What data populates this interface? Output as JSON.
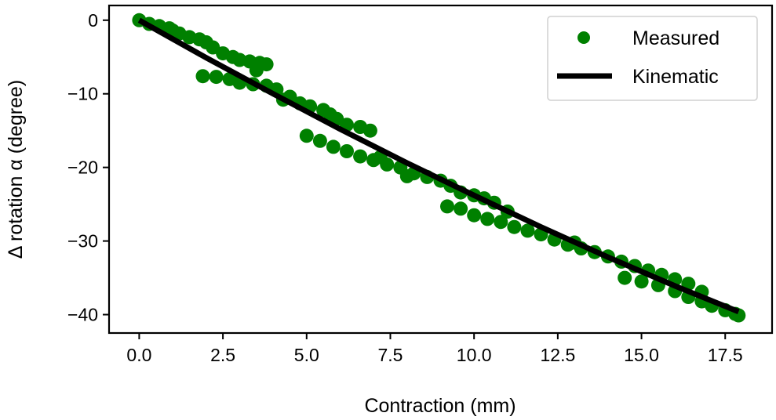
{
  "chart_data": {
    "type": "scatter",
    "title": "",
    "xlabel": "Contraction (mm)",
    "ylabel": "Δ rotation α (degree)",
    "xlim": [
      -0.9,
      18.9
    ],
    "ylim": [
      -42.5,
      2.0
    ],
    "xticks": [
      0.0,
      2.5,
      5.0,
      7.5,
      10.0,
      12.5,
      15.0,
      17.5
    ],
    "xtick_labels": [
      "0.0",
      "2.5",
      "5.0",
      "7.5",
      "10.0",
      "12.5",
      "15.0",
      "17.5"
    ],
    "yticks": [
      0,
      -10,
      -20,
      -30,
      -40
    ],
    "ytick_labels": [
      "0",
      "−10",
      "−20",
      "−30",
      "−40"
    ],
    "grid": false,
    "legend_position": "top-right",
    "series": [
      {
        "name": "Measured",
        "kind": "scatter",
        "color": "#008000",
        "points": [
          [
            0.0,
            0.0
          ],
          [
            0.3,
            -0.5
          ],
          [
            0.6,
            -0.8
          ],
          [
            0.9,
            -1.1
          ],
          [
            1.2,
            -1.8
          ],
          [
            1.5,
            -2.3
          ],
          [
            1.8,
            -2.6
          ],
          [
            2.0,
            -3.0
          ],
          [
            2.2,
            -3.7
          ],
          [
            2.5,
            -4.5
          ],
          [
            2.8,
            -5.0
          ],
          [
            3.0,
            -5.4
          ],
          [
            3.3,
            -5.6
          ],
          [
            3.6,
            -5.8
          ],
          [
            3.8,
            -6.0
          ],
          [
            1.9,
            -7.6
          ],
          [
            2.3,
            -7.7
          ],
          [
            2.7,
            -8.0
          ],
          [
            3.0,
            -8.5
          ],
          [
            3.4,
            -8.7
          ],
          [
            3.8,
            -8.9
          ],
          [
            4.1,
            -9.4
          ],
          [
            4.5,
            -10.4
          ],
          [
            4.8,
            -11.3
          ],
          [
            5.1,
            -11.7
          ],
          [
            5.5,
            -12.2
          ],
          [
            5.7,
            -12.8
          ],
          [
            5.9,
            -13.4
          ],
          [
            6.2,
            -14.2
          ],
          [
            6.6,
            -14.5
          ],
          [
            6.9,
            -15.0
          ],
          [
            5.0,
            -15.7
          ],
          [
            5.4,
            -16.4
          ],
          [
            5.8,
            -17.2
          ],
          [
            6.2,
            -17.8
          ],
          [
            6.6,
            -18.5
          ],
          [
            7.0,
            -19.0
          ],
          [
            7.4,
            -19.6
          ],
          [
            7.8,
            -20.0
          ],
          [
            8.2,
            -20.8
          ],
          [
            8.6,
            -21.3
          ],
          [
            9.0,
            -21.8
          ],
          [
            9.3,
            -22.5
          ],
          [
            9.6,
            -23.4
          ],
          [
            10.0,
            -23.8
          ],
          [
            10.3,
            -24.2
          ],
          [
            10.6,
            -24.8
          ],
          [
            9.2,
            -25.3
          ],
          [
            9.6,
            -25.6
          ],
          [
            10.0,
            -26.5
          ],
          [
            10.4,
            -27.0
          ],
          [
            10.8,
            -27.4
          ],
          [
            11.2,
            -28.1
          ],
          [
            11.6,
            -28.6
          ],
          [
            12.0,
            -29.1
          ],
          [
            12.4,
            -29.8
          ],
          [
            12.8,
            -30.5
          ],
          [
            13.2,
            -31.0
          ],
          [
            13.6,
            -31.5
          ],
          [
            14.0,
            -32.1
          ],
          [
            14.4,
            -32.8
          ],
          [
            14.8,
            -33.4
          ],
          [
            15.2,
            -34.0
          ],
          [
            15.6,
            -34.6
          ],
          [
            16.0,
            -35.2
          ],
          [
            16.4,
            -35.8
          ],
          [
            16.8,
            -36.9
          ],
          [
            14.5,
            -35.0
          ],
          [
            15.0,
            -35.5
          ],
          [
            15.5,
            -36.0
          ],
          [
            16.0,
            -36.8
          ],
          [
            16.4,
            -37.6
          ],
          [
            16.8,
            -38.2
          ],
          [
            17.1,
            -38.8
          ],
          [
            17.5,
            -39.4
          ],
          [
            17.8,
            -39.9
          ],
          [
            17.9,
            -40.1
          ],
          [
            13.0,
            -30.2
          ],
          [
            11.0,
            -26.0
          ],
          [
            8.0,
            -21.2
          ],
          [
            7.2,
            -18.6
          ],
          [
            4.3,
            -10.8
          ],
          [
            3.5,
            -6.8
          ],
          [
            1.0,
            -1.4
          ]
        ]
      },
      {
        "name": "Kinematic",
        "kind": "line",
        "color": "#000000",
        "x": [
          0.0,
          2.0,
          4.0,
          6.0,
          8.0,
          10.0,
          12.0,
          14.0,
          16.0,
          17.9
        ],
        "y": [
          0.0,
          -5.1,
          -10.0,
          -14.8,
          -19.4,
          -23.8,
          -28.1,
          -32.2,
          -36.1,
          -39.6
        ]
      }
    ]
  }
}
